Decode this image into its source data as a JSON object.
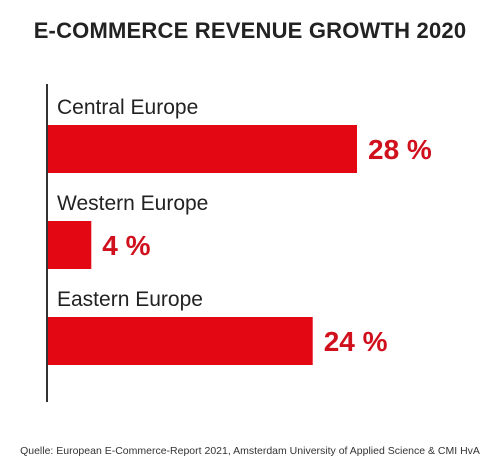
{
  "chart_data": {
    "type": "bar",
    "orientation": "horizontal",
    "title": "E-COMMERCE REVENUE GROWTH 2020",
    "categories": [
      "Central Europe",
      "Western Europe",
      "Eastern Europe"
    ],
    "values": [
      28,
      4,
      24
    ],
    "value_labels": [
      "28 %",
      "4 %",
      "24 %"
    ],
    "unit": "%",
    "xlim": [
      0,
      28
    ],
    "grid": false,
    "legend": "none",
    "bar_color": "#e30613",
    "value_label_color": "#d0101d",
    "axis_color": "#333333",
    "source": "Quelle: European E-Commerce-Report 2021, Amsterdam University of Applied Science & CMI HvA"
  }
}
